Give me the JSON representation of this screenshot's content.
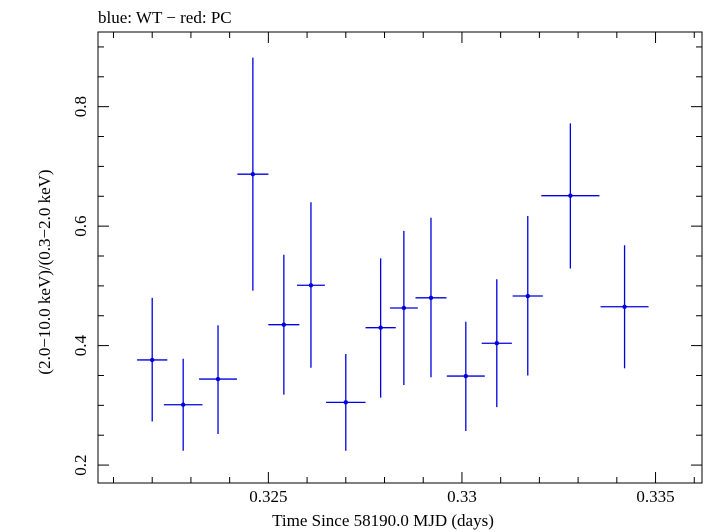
{
  "chart_data": {
    "type": "scatter",
    "title": "blue: WT − red: PC",
    "xlabel": "Time Since 58190.0 MJD (days)",
    "ylabel": "(2.0−10.0 keV)/(0.3−2.0 keV)",
    "xlim": [
      0.3206,
      0.3362
    ],
    "ylim": [
      0.17,
      0.925
    ],
    "x_ticks": [
      0.325,
      0.33,
      0.335
    ],
    "x_tick_labels": [
      "0.325",
      "0.33",
      "0.335"
    ],
    "y_ticks": [
      0.2,
      0.4,
      0.6,
      0.8
    ],
    "y_tick_labels": [
      "0.2",
      "0.4",
      "0.6",
      "0.8"
    ],
    "series": [
      {
        "color": "#0000e0",
        "points": [
          {
            "x": 0.322,
            "y": 0.376,
            "xerr": 0.00039,
            "ylo": 0.273,
            "yhi": 0.48
          },
          {
            "x": 0.3228,
            "y": 0.301,
            "xerr": 0.0005,
            "ylo": 0.224,
            "yhi": 0.378
          },
          {
            "x": 0.3237,
            "y": 0.344,
            "xerr": 0.00049,
            "ylo": 0.252,
            "yhi": 0.434
          },
          {
            "x": 0.3246,
            "y": 0.687,
            "xerr": 0.0004,
            "ylo": 0.492,
            "yhi": 0.882
          },
          {
            "x": 0.3254,
            "y": 0.435,
            "xerr": 0.0004,
            "ylo": 0.318,
            "yhi": 0.552
          },
          {
            "x": 0.3261,
            "y": 0.501,
            "xerr": 0.00036,
            "ylo": 0.363,
            "yhi": 0.64
          },
          {
            "x": 0.327,
            "y": 0.305,
            "xerr": 0.00051,
            "ylo": 0.224,
            "yhi": 0.386
          },
          {
            "x": 0.3279,
            "y": 0.43,
            "xerr": 0.00039,
            "ylo": 0.313,
            "yhi": 0.546
          },
          {
            "x": 0.3285,
            "y": 0.463,
            "xerr": 0.00036,
            "ylo": 0.334,
            "yhi": 0.592
          },
          {
            "x": 0.3292,
            "y": 0.48,
            "xerr": 0.0004,
            "ylo": 0.347,
            "yhi": 0.614
          },
          {
            "x": 0.3301,
            "y": 0.349,
            "xerr": 0.00049,
            "ylo": 0.257,
            "yhi": 0.44
          },
          {
            "x": 0.3309,
            "y": 0.404,
            "xerr": 0.00039,
            "ylo": 0.297,
            "yhi": 0.511
          },
          {
            "x": 0.3317,
            "y": 0.483,
            "xerr": 0.00039,
            "ylo": 0.35,
            "yhi": 0.617
          },
          {
            "x": 0.3328,
            "y": 0.651,
            "xerr": 0.00075,
            "ylo": 0.529,
            "yhi": 0.772
          },
          {
            "x": 0.3342,
            "y": 0.465,
            "xerr": 0.00062,
            "ylo": 0.362,
            "yhi": 0.568
          }
        ]
      }
    ],
    "grid": false
  }
}
